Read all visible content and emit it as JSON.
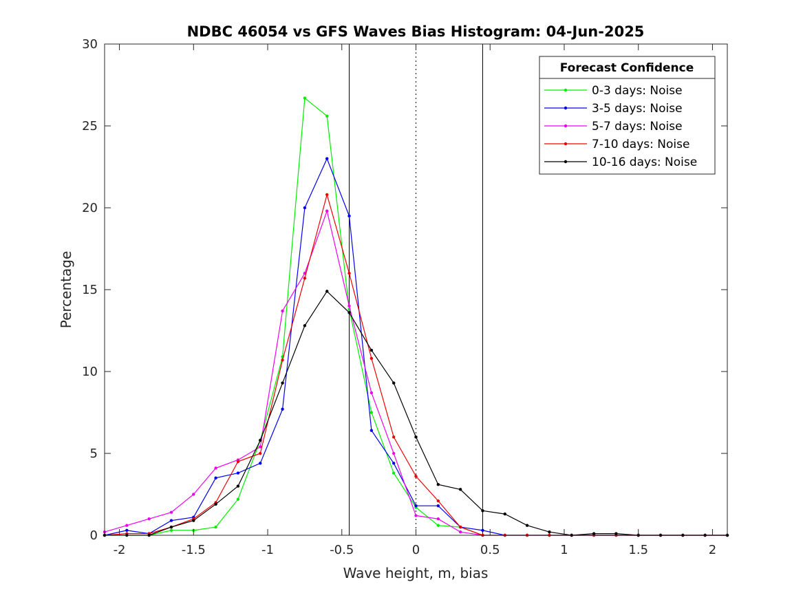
{
  "chart_data": {
    "type": "line",
    "title": "NDBC 46054 vs GFS Waves Bias Histogram: 04-Jun-2025",
    "xlabel": "Wave height, m, bias",
    "ylabel": "Percentage",
    "xlim": [
      -2.1,
      2.1
    ],
    "ylim": [
      0,
      30
    ],
    "xticks": [
      -2,
      -1.5,
      -1,
      -0.5,
      0,
      0.5,
      1,
      1.5,
      2
    ],
    "xtick_labels": [
      "-2",
      "-1.5",
      "-1",
      "-0.5",
      "0",
      "0.5",
      "1",
      "1.5",
      "2"
    ],
    "yticks": [
      0,
      5,
      10,
      15,
      20,
      25,
      30
    ],
    "ytick_labels": [
      "0",
      "5",
      "10",
      "15",
      "20",
      "25",
      "30"
    ],
    "grid": false,
    "legend": {
      "title": "Forecast Confidence",
      "placement": "top-right"
    },
    "reference_lines": {
      "solid_x": [
        -0.45,
        0.45
      ],
      "dotted_x": [
        0
      ]
    },
    "x": [
      -2.1,
      -1.95,
      -1.8,
      -1.65,
      -1.5,
      -1.35,
      -1.2,
      -1.05,
      -0.9,
      -0.75,
      -0.6,
      -0.45,
      -0.3,
      -0.15,
      0,
      0.15,
      0.3,
      0.45,
      0.6,
      0.75,
      0.9,
      1.05,
      1.2,
      1.35,
      1.5,
      1.65,
      1.8,
      1.95,
      2.1
    ],
    "series": [
      {
        "name": "0-3 days: Noise",
        "color": "#00ee00",
        "values": [
          0,
          0,
          0,
          0.3,
          0.3,
          0.5,
          2.2,
          5.8,
          10.9,
          26.7,
          25.6,
          13.8,
          7.5,
          3.8,
          1.7,
          0.6,
          0.5,
          0,
          0,
          0,
          0,
          0,
          0,
          0,
          0,
          0,
          0,
          0,
          0
        ]
      },
      {
        "name": "3-5 days: Noise",
        "color": "#0000ee",
        "values": [
          0,
          0.3,
          0.1,
          0.9,
          1.1,
          3.5,
          3.8,
          4.4,
          7.7,
          20.0,
          23.0,
          19.5,
          6.4,
          4.4,
          1.8,
          1.8,
          0.5,
          0.3,
          0,
          0,
          0,
          0,
          0,
          0,
          0,
          0,
          0,
          0,
          0
        ]
      },
      {
        "name": "5-7 days: Noise",
        "color": "#ee00ee",
        "values": [
          0.2,
          0.6,
          1.0,
          1.4,
          2.5,
          4.1,
          4.6,
          5.4,
          13.7,
          16.0,
          19.8,
          14.0,
          8.7,
          5.0,
          1.2,
          1.0,
          0.2,
          0,
          0,
          0,
          0,
          0,
          0,
          0,
          0,
          0,
          0,
          0,
          0
        ]
      },
      {
        "name": "7-10 days: Noise",
        "color": "#ee0000",
        "values": [
          0,
          0.1,
          0.1,
          0.5,
          1.0,
          2.0,
          4.5,
          5.0,
          10.7,
          15.7,
          20.8,
          16.0,
          10.8,
          6.0,
          3.6,
          2.1,
          0.5,
          0,
          0,
          0,
          0,
          0,
          0,
          0,
          0,
          0,
          0,
          0,
          0
        ]
      },
      {
        "name": "10-16 days: Noise",
        "color": "#000000",
        "values": [
          0,
          0,
          0,
          0.5,
          0.9,
          1.9,
          3.0,
          5.8,
          9.3,
          12.8,
          14.9,
          13.6,
          11.3,
          9.3,
          6.0,
          3.1,
          2.8,
          1.5,
          1.3,
          0.6,
          0.2,
          0,
          0.1,
          0.1,
          0,
          0,
          0,
          0,
          0
        ]
      }
    ]
  }
}
